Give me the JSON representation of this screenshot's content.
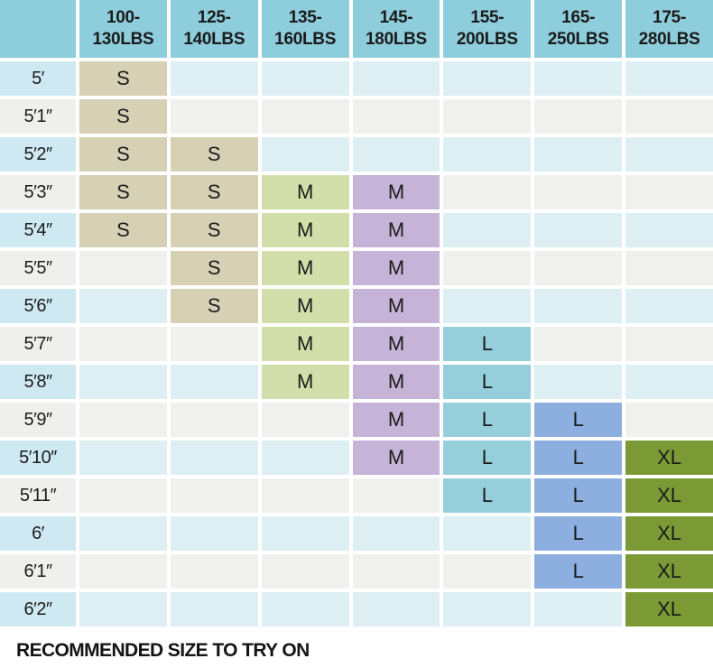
{
  "colors": {
    "header_bg": "#8ecddc",
    "row_blue": "#deeff3",
    "row_gray": "#f0f1ef",
    "label_blue": "#cfe9f2",
    "label_gray": "#eff0ee",
    "text": "#1b1b1b"
  },
  "header": {
    "corner_label": "",
    "columns": [
      {
        "line1": "100-",
        "line2": "130LBS",
        "fill": "#d6d0b5"
      },
      {
        "line1": "125-",
        "line2": "140LBS",
        "fill": "#d6d0b5"
      },
      {
        "line1": "135-",
        "line2": "160LBS",
        "fill": "#d2dfaa"
      },
      {
        "line1": "145-",
        "line2": "180LBS",
        "fill": "#c5b4d7"
      },
      {
        "line1": "155-",
        "line2": "200LBS",
        "fill": "#95cfdc"
      },
      {
        "line1": "165-",
        "line2": "250LBS",
        "fill": "#8cafdf"
      },
      {
        "line1": "175-",
        "line2": "280LBS",
        "fill": "#7b9a35"
      }
    ]
  },
  "rows": [
    {
      "height": "5′",
      "sizes": [
        "S",
        "",
        "",
        "",
        "",
        "",
        ""
      ]
    },
    {
      "height": "5′1″",
      "sizes": [
        "S",
        "",
        "",
        "",
        "",
        "",
        ""
      ]
    },
    {
      "height": "5′2″",
      "sizes": [
        "S",
        "S",
        "",
        "",
        "",
        "",
        ""
      ]
    },
    {
      "height": "5′3″",
      "sizes": [
        "S",
        "S",
        "M",
        "M",
        "",
        "",
        ""
      ]
    },
    {
      "height": "5′4″",
      "sizes": [
        "S",
        "S",
        "M",
        "M",
        "",
        "",
        ""
      ]
    },
    {
      "height": "5′5″",
      "sizes": [
        "",
        "S",
        "M",
        "M",
        "",
        "",
        ""
      ]
    },
    {
      "height": "5′6″",
      "sizes": [
        "",
        "S",
        "M",
        "M",
        "",
        "",
        ""
      ]
    },
    {
      "height": "5′7″",
      "sizes": [
        "",
        "",
        "M",
        "M",
        "L",
        "",
        ""
      ]
    },
    {
      "height": "5′8″",
      "sizes": [
        "",
        "",
        "M",
        "M",
        "L",
        "",
        ""
      ]
    },
    {
      "height": "5′9″",
      "sizes": [
        "",
        "",
        "",
        "M",
        "L",
        "L",
        ""
      ]
    },
    {
      "height": "5′10″",
      "sizes": [
        "",
        "",
        "",
        "M",
        "L",
        "L",
        "XL"
      ]
    },
    {
      "height": "5′11″",
      "sizes": [
        "",
        "",
        "",
        "",
        "L",
        "L",
        "XL"
      ]
    },
    {
      "height": "6′",
      "sizes": [
        "",
        "",
        "",
        "",
        "",
        "L",
        "XL"
      ]
    },
    {
      "height": "6′1″",
      "sizes": [
        "",
        "",
        "",
        "",
        "",
        "L",
        "XL"
      ]
    },
    {
      "height": "6′2″",
      "sizes": [
        "",
        "",
        "",
        "",
        "",
        "",
        "XL"
      ]
    }
  ],
  "footer": {
    "note": "RECOMMENDED SIZE TO TRY ON"
  }
}
